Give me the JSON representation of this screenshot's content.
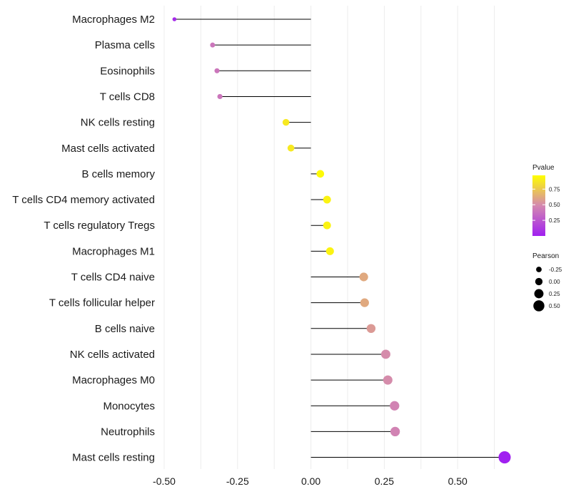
{
  "chart_data": {
    "type": "lollipop",
    "categories": [
      "Macrophages M2",
      "Plasma cells",
      "Eosinophils",
      "T cells CD8",
      "NK cells resting",
      "Mast cells activated",
      "B cells memory",
      "T cells CD4 memory activated",
      "T cells regulatory  Tregs ",
      "Macrophages M1",
      "T cells CD4 naive",
      "T cells follicular helper",
      "B cells naive",
      "NK cells activated",
      "Macrophages M0",
      "Monocytes",
      "Neutrophils",
      "Mast cells resting"
    ],
    "values": [
      -0.465,
      -0.335,
      -0.32,
      -0.31,
      -0.085,
      -0.068,
      0.032,
      0.055,
      0.055,
      0.065,
      0.18,
      0.183,
      0.205,
      0.255,
      0.262,
      0.285,
      0.287,
      0.66
    ],
    "pvalues": [
      0.05,
      0.4,
      0.4,
      0.4,
      0.88,
      0.88,
      0.95,
      0.92,
      0.92,
      0.92,
      0.62,
      0.62,
      0.56,
      0.5,
      0.5,
      0.46,
      0.46,
      0.0
    ],
    "xlim": [
      -0.5,
      0.68
    ],
    "xticks": [
      -0.5,
      -0.25,
      0.0,
      0.25,
      0.5
    ],
    "xtick_labels": [
      "-0.50",
      "-0.25",
      "0.00",
      "0.25",
      "0.50"
    ],
    "xlabel": "",
    "ylabel": "",
    "color_legend": {
      "title": "Pvalue",
      "range": [
        0.0,
        0.97
      ],
      "ticks": [
        0.25,
        0.5,
        0.75
      ],
      "tick_labels": [
        "0.25",
        "0.50",
        "0.75"
      ],
      "low_color": "#a020f0",
      "mid_color": "#d488b0",
      "high_color": "#ffff00"
    },
    "size_legend": {
      "title": "Pearson",
      "values": [
        -0.25,
        0.0,
        0.25,
        0.5
      ],
      "labels": [
        "-0.25",
        "0.00",
        "0.25",
        "0.50"
      ]
    }
  }
}
